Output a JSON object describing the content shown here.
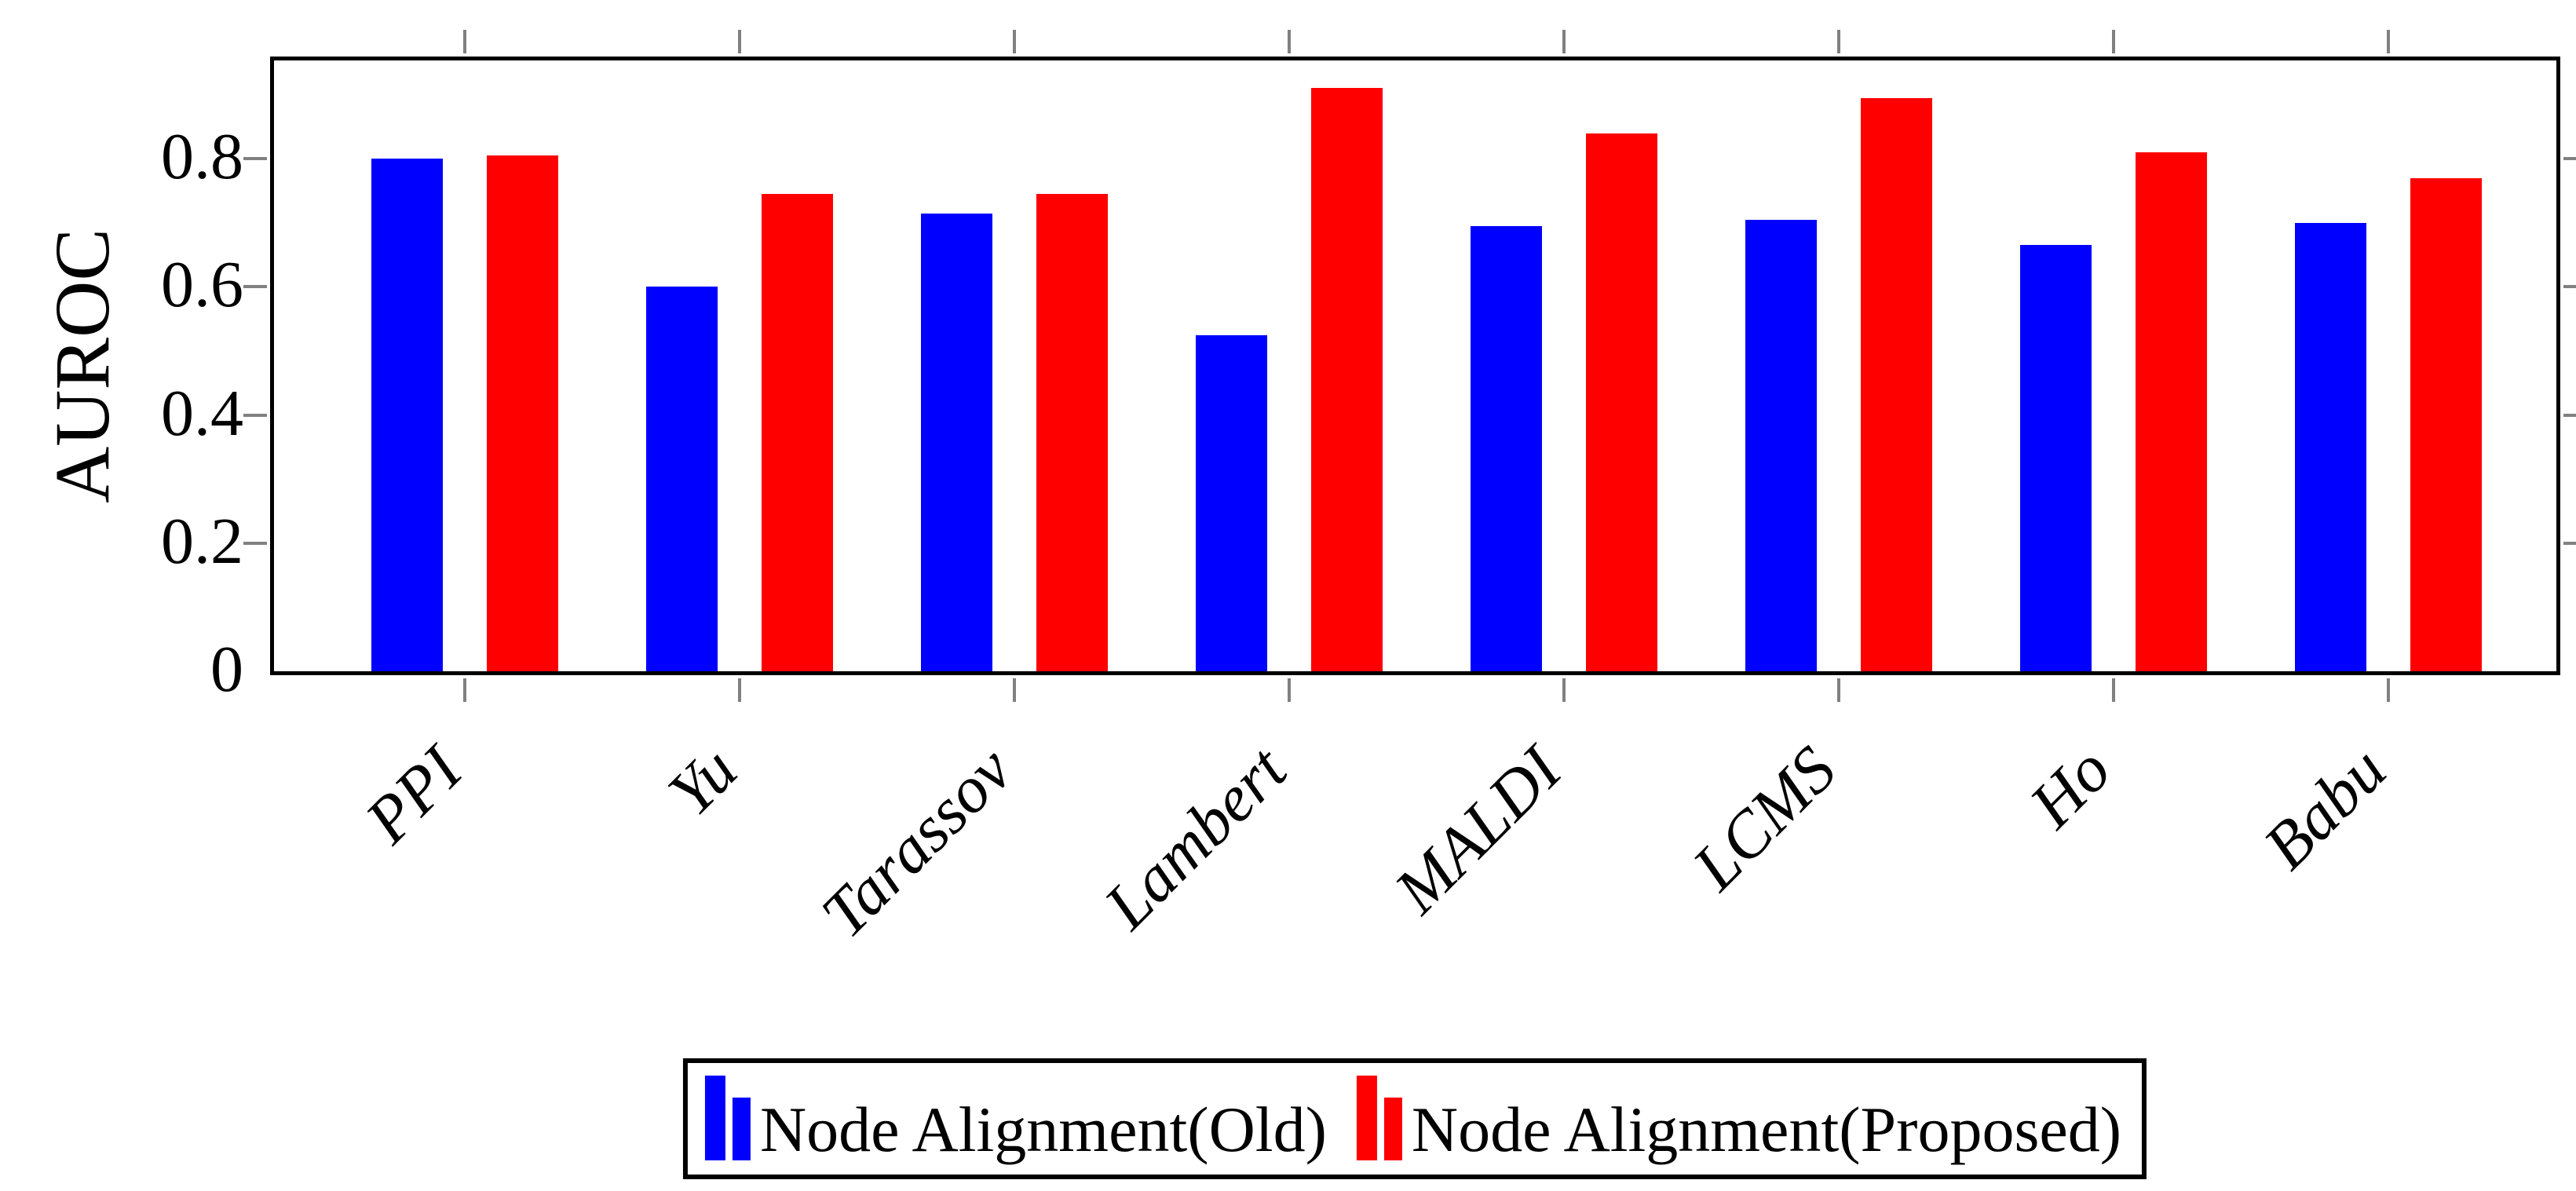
{
  "figure": {
    "background": "#ffffff",
    "axis_color": "#000000",
    "tick_color": "#808080"
  },
  "chart_data": {
    "type": "bar",
    "title": "",
    "xlabel": "",
    "ylabel": "AUROC",
    "categories": [
      "PPI",
      "Yu",
      "Tarassov",
      "Lambert",
      "MALDI",
      "LCMS",
      "Ho",
      "Babu"
    ],
    "series": [
      {
        "name": "Node Alignment(Old)",
        "color": "#0000ff",
        "values": [
          0.8,
          0.6,
          0.715,
          0.525,
          0.695,
          0.705,
          0.665,
          0.7
        ]
      },
      {
        "name": "Node Alignment(Proposed)",
        "color": "#ff0000",
        "values": [
          0.805,
          0.745,
          0.745,
          0.91,
          0.84,
          0.895,
          0.81,
          0.77
        ]
      }
    ],
    "ylim": [
      0,
      0.953
    ],
    "yticks": [
      0,
      0.2,
      0.4,
      0.6,
      0.8
    ],
    "grid": false,
    "legend_position": "bottom",
    "bar_style": "grouped"
  }
}
